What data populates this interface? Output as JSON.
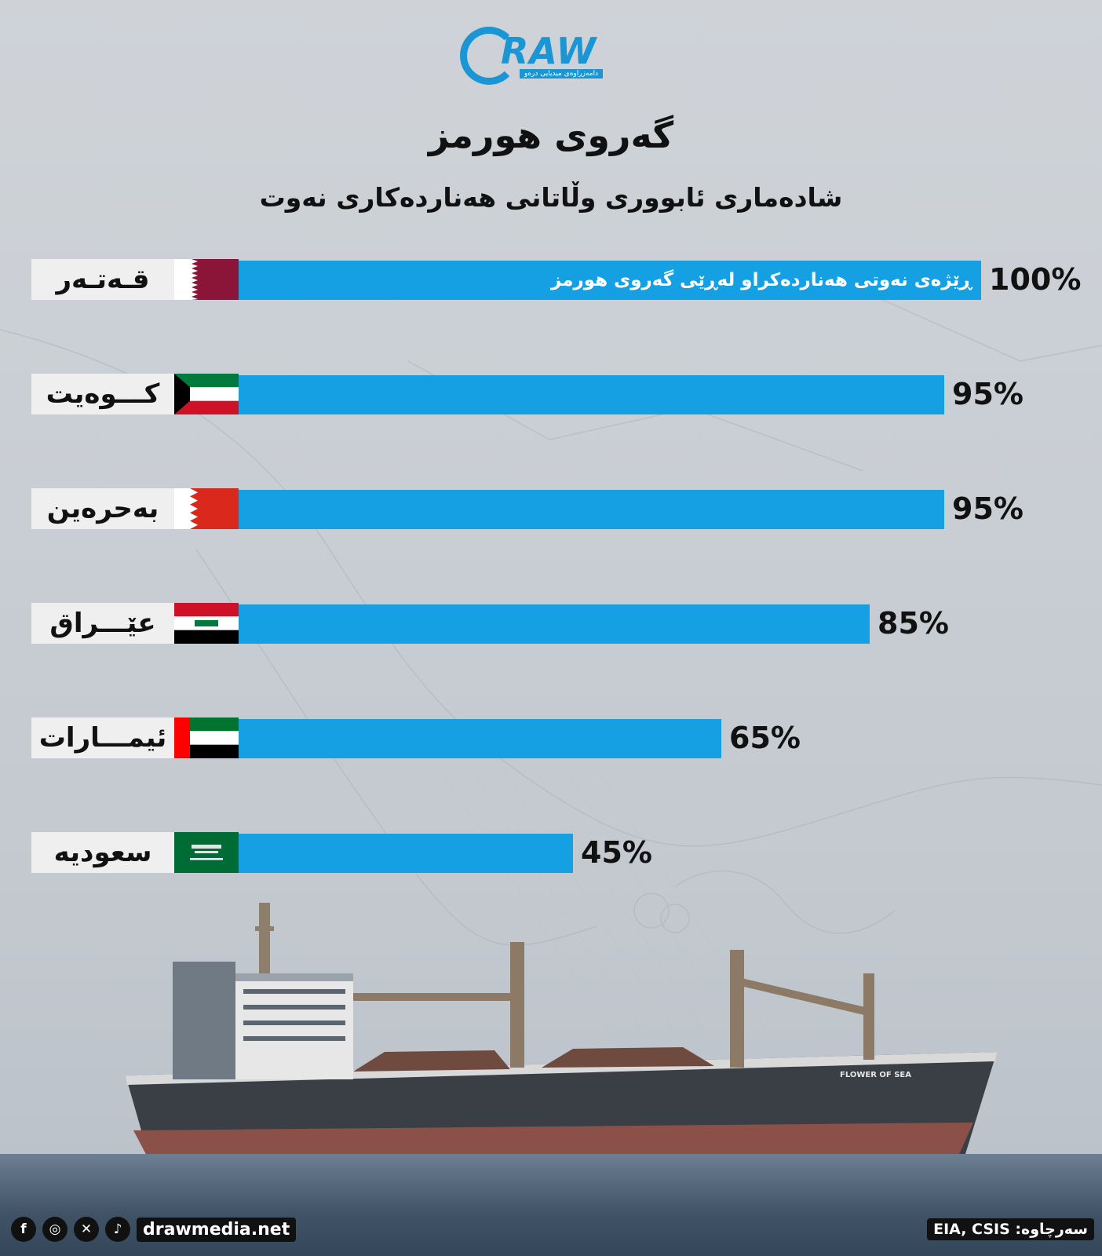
{
  "logo": {
    "text": "RAW",
    "tagline": "دامەزراوەی میدیایی درەو"
  },
  "title": "گەروی هورمز",
  "subtitle": "شادەماری ئابووری وڵاتانی هەناردەکاری نەوت",
  "bar_note": "ڕێژەی نەوتی هەناردەکراو لەڕێی گەروی هورمز",
  "colors": {
    "bar": "#14a0e3",
    "country_box": "#efefef",
    "logo": "#1a96d4"
  },
  "chart_data": {
    "type": "bar",
    "orientation": "horizontal",
    "unit": "%",
    "xlim": [
      0,
      100
    ],
    "categories": [
      "قـەتـەر",
      "کـــوەیت",
      "بەحرەین",
      "عێـــراق",
      "ئیمـــارات",
      "سعودیە"
    ],
    "values": [
      100,
      95,
      95,
      85,
      65,
      45
    ],
    "value_labels": [
      "100%",
      "95%",
      "95%",
      "85%",
      "65%",
      "45%"
    ],
    "flags": [
      "qatar-flag",
      "kuwait-flag",
      "bahrain-flag",
      "iraq-flag",
      "uae-flag",
      "saudi-flag"
    ]
  },
  "footer": {
    "site": "drawmedia.net",
    "source": "سەرچاوە: EIA, CSIS",
    "social_icons": [
      "facebook-icon",
      "instagram-icon",
      "x-icon",
      "tiktok-icon"
    ]
  }
}
